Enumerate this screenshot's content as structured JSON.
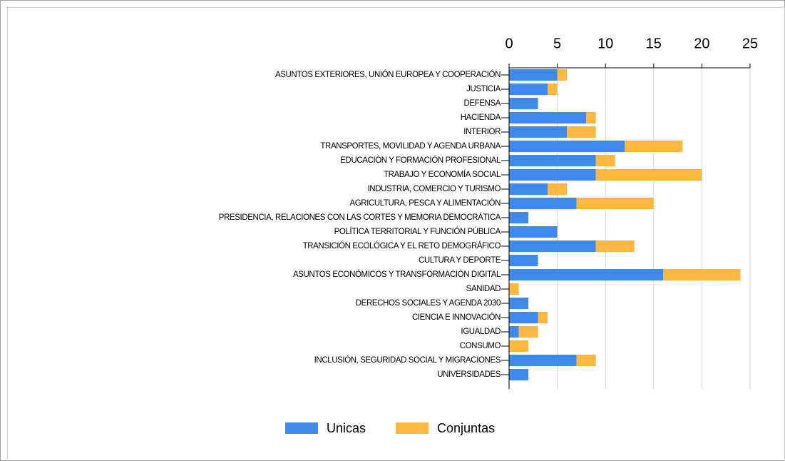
{
  "chart_data": {
    "type": "bar",
    "orientation": "horizontal",
    "stacked": true,
    "categories": [
      "ASUNTOS EXTERIORES, UNIÓN EUROPEA Y COOPERACIÓN",
      "JUSTICIA",
      "DEFENSA",
      "HACIENDA",
      "INTERIOR",
      "TRANSPORTES, MOVILIDAD Y AGENDA URBANA",
      "EDUCACIÓN Y FORMACIÓN PROFESIONAL",
      "TRABAJO Y ECONOMÍA SOCIAL",
      "INDUSTRIA, COMERCIO Y TURISMO",
      "AGRICULTURA, PESCA Y ALIMENTACIÓN",
      "PRESIDENCIA, RELACIONES CON LAS CORTES Y MEMORIA DEMOCRÁTICA",
      "POLÍTICA TERRITORIAL Y FUNCIÓN PÚBLICA",
      "TRANSICIÓN ECOLÓGICA Y EL RETO DEMOGRÁFICO",
      "CULTURA Y DEPORTE",
      "ASUNTOS ECONÓMICOS Y TRANSFORMACIÓN DIGITAL",
      "SANIDAD",
      "DERECHOS SOCIALES Y AGENDA 2030",
      "CIENCIA E INNOVACIÓN",
      "IGUALDAD",
      "CONSUMO",
      "INCLUSIÓN, SEGURIDAD SOCIAL Y MIGRACIONES",
      "UNIVERSIDADES"
    ],
    "series": [
      {
        "name": "Unicas",
        "color": "#4189e8",
        "values": [
          5,
          4,
          3,
          8,
          6,
          12,
          9,
          9,
          4,
          7,
          2,
          5,
          9,
          3,
          16,
          0,
          2,
          3,
          1,
          0,
          7,
          2
        ]
      },
      {
        "name": "Conjuntas",
        "color": "#fdb843",
        "values": [
          1,
          1,
          0,
          1,
          3,
          6,
          2,
          11,
          2,
          8,
          0,
          0,
          4,
          0,
          8,
          1,
          0,
          1,
          2,
          2,
          2,
          0
        ]
      }
    ],
    "xlim": [
      0,
      25
    ],
    "xticks": [
      0,
      5,
      10,
      15,
      20,
      25
    ],
    "grid": true,
    "legend": "bottom"
  }
}
